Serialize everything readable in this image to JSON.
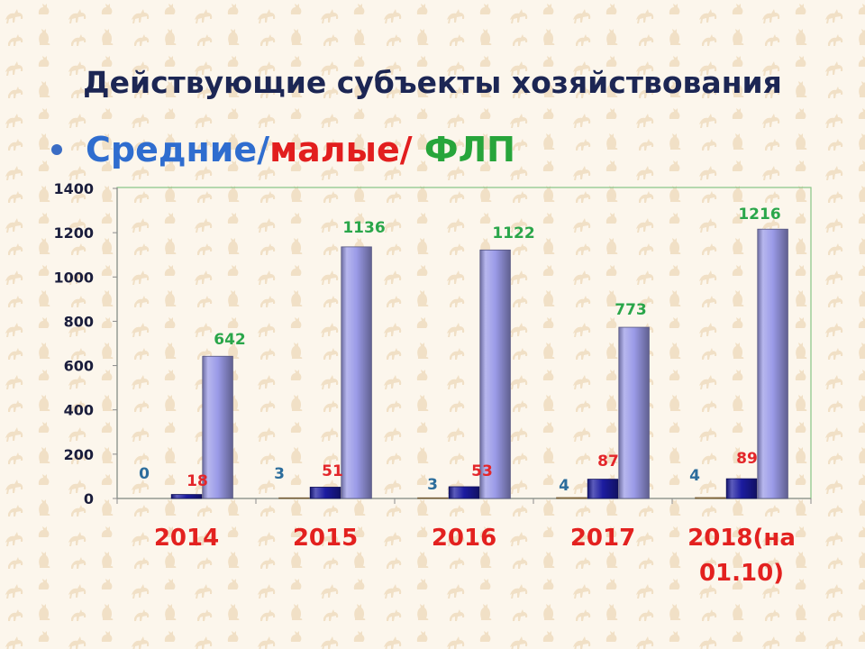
{
  "slide": {
    "title": "Действующие субъекты хозяйствования",
    "bullet": [
      {
        "text": "Средние/",
        "color": "#2f6dcf"
      },
      {
        "text": "малые/",
        "color": "#e21e1e"
      },
      {
        "text": " ФЛП",
        "color": "#27a53b"
      }
    ]
  },
  "colors": {
    "background": "#fcf6ec",
    "background_motif": "#efdcbf",
    "title": "#1c2654",
    "bullet_marker": "#3a6cc4",
    "axis_text": "#1a1d3c",
    "category_text": "#e3211f",
    "plot_border": "#86c486",
    "axis_line": "#8c8c8c"
  },
  "chart_data": {
    "type": "bar",
    "categories": [
      "2014",
      "2015",
      "2016",
      "2017",
      "2018(на 01.10)"
    ],
    "series": [
      {
        "values": [
          0,
          3,
          3,
          4,
          4
        ],
        "color": "#d4a35c",
        "label_color": "#2c6d9c"
      },
      {
        "values": [
          18,
          51,
          53,
          87,
          89
        ],
        "color": "#1c1ca0",
        "label_color": "#e3262a"
      },
      {
        "values": [
          642,
          1136,
          1122,
          773,
          1216
        ],
        "color": "#9b9be8",
        "label_color": "#2aa64a"
      }
    ],
    "ylim": [
      0,
      1400
    ],
    "yticks": [
      0,
      200,
      400,
      600,
      800,
      1000,
      1200,
      1400
    ],
    "data_labels": true,
    "grid": false,
    "legend": "none"
  }
}
